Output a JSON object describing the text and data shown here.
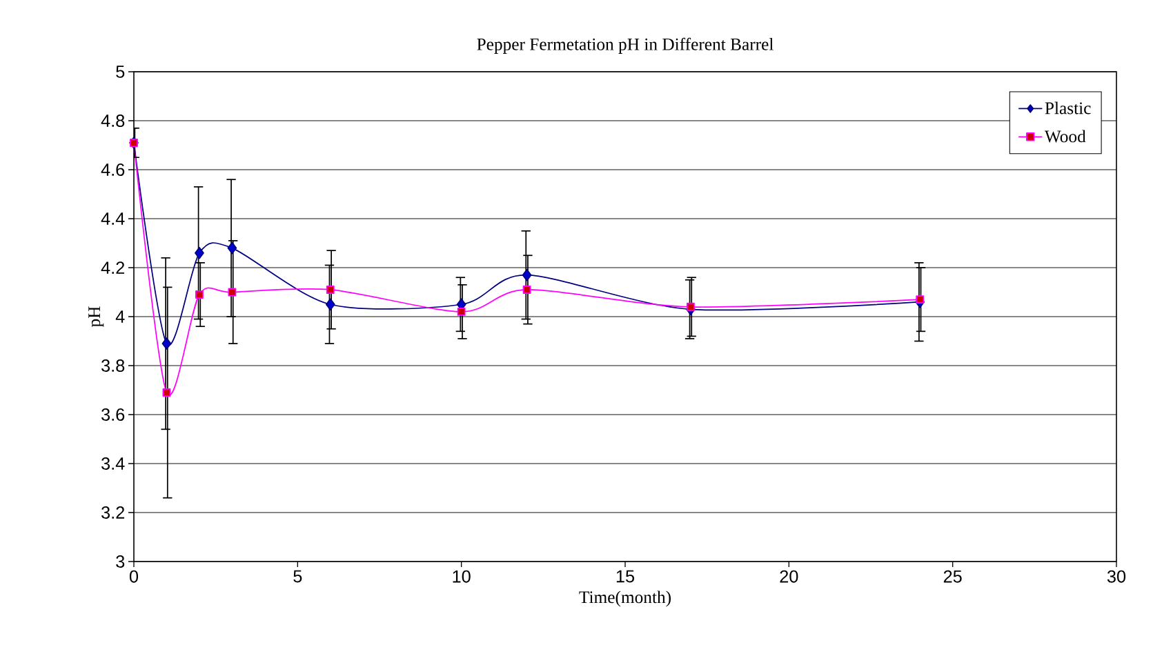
{
  "chart_data": {
    "type": "line",
    "title": "Pepper Fermetation pH in Different Barrel",
    "xlabel": "Time(month)",
    "ylabel": "pH",
    "x": [
      0,
      1,
      2,
      3,
      6,
      10,
      12,
      17,
      24
    ],
    "series": [
      {
        "name": "Plastic",
        "color": "#000080",
        "marker": "diamond",
        "values": [
          4.71,
          3.89,
          4.26,
          4.28,
          4.05,
          4.05,
          4.17,
          4.03,
          4.06
        ],
        "errors": [
          0.06,
          0.35,
          0.27,
          0.28,
          0.16,
          0.11,
          0.18,
          0.12,
          0.16
        ]
      },
      {
        "name": "Wood",
        "color": "#ff00ff",
        "marker": "square",
        "values": [
          4.71,
          3.69,
          4.09,
          4.1,
          4.11,
          4.02,
          4.11,
          4.04,
          4.07
        ],
        "errors": [
          0.06,
          0.43,
          0.13,
          0.21,
          0.16,
          0.11,
          0.14,
          0.12,
          0.13
        ]
      }
    ],
    "xlim": [
      0,
      30
    ],
    "xticks": [
      0,
      5,
      10,
      15,
      20,
      25,
      30
    ],
    "ylim": [
      3,
      5
    ],
    "yticks": [
      3,
      3.2,
      3.4,
      3.6,
      3.8,
      4,
      4.2,
      4.4,
      4.6,
      4.8,
      5
    ],
    "grid": "y",
    "legend": "top right"
  }
}
